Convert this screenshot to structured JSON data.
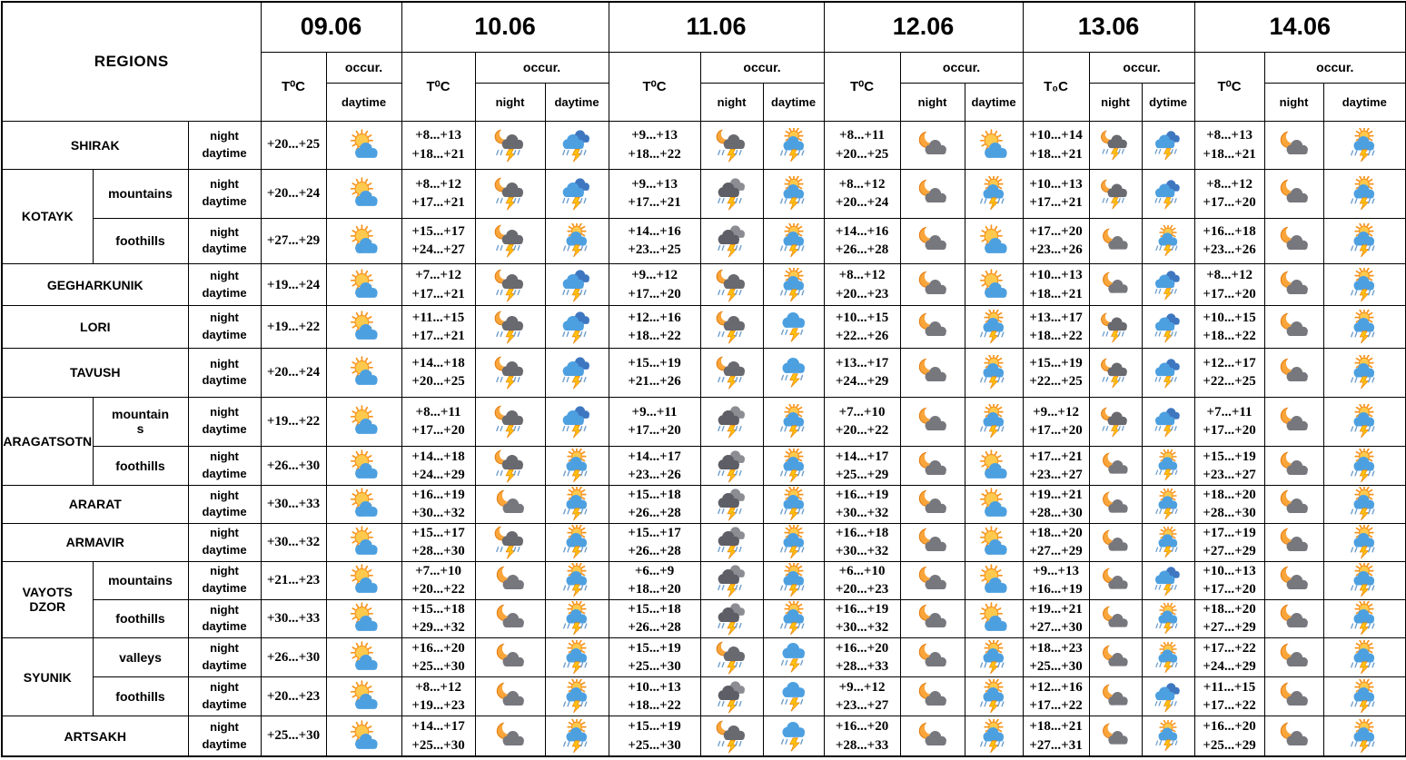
{
  "header": {
    "regions_label": "REGIONS",
    "occur_label": "occur.",
    "dates": [
      {
        "label": "09.06",
        "temp_label": "T⁰C",
        "cols": [
          "daytime"
        ]
      },
      {
        "label": "10.06",
        "temp_label": "T⁰C",
        "cols": [
          "night",
          "daytime"
        ]
      },
      {
        "label": "11.06",
        "temp_label": "T⁰C",
        "cols": [
          "night",
          "daytime"
        ]
      },
      {
        "label": "12.06",
        "temp_label": "T⁰C",
        "cols": [
          "night",
          "daytime"
        ]
      },
      {
        "label": "13.06",
        "temp_label": "T₀C",
        "cols": [
          "night",
          "dytime"
        ]
      },
      {
        "label": "14.06",
        "temp_label": "T⁰C",
        "cols": [
          "night",
          "daytime"
        ]
      }
    ]
  },
  "labels": {
    "night": "night",
    "daytime": "daytime"
  },
  "icons_legend": {
    "partly-day": "sun behind blue cloud",
    "storm-day-sun": "sun with blue cloud, lightning and rain",
    "storm-blue-heavy": "two blue clouds with lightning and heavy rain",
    "storm-blue": "blue cloud with lightning and rain",
    "storm-night-moon": "moon with dark cloud, lightning and rain",
    "night-cloud": "moon with grey cloud",
    "storm-dark": "dark clouds with lightning and rain"
  },
  "colors": {
    "sun": "#F7941D",
    "moon": "#FAA53A",
    "day_cloud": "#4DA0E0",
    "night_cloud": "#77777E",
    "bolt": "#FFC20E",
    "rain": "#6D9ECC"
  },
  "rows": [
    {
      "region": "SHIRAK",
      "region_rowspan": 1,
      "subregion": null,
      "days": [
        {
          "temps": [
            "+20...+25"
          ],
          "icons": [
            "partly-day"
          ]
        },
        {
          "temps": [
            "+8...+13",
            "+18...+21"
          ],
          "icons": [
            "storm-night-moon",
            "storm-blue-heavy"
          ]
        },
        {
          "temps": [
            "+9...+13",
            "+18...+22"
          ],
          "icons": [
            "storm-night-moon",
            "storm-day-sun"
          ]
        },
        {
          "temps": [
            "+8...+11",
            "+20...+25"
          ],
          "icons": [
            "night-cloud",
            "partly-day"
          ]
        },
        {
          "temps": [
            "+10...+14",
            "+18...+21"
          ],
          "icons": [
            "storm-night-moon",
            "storm-blue-heavy"
          ]
        },
        {
          "temps": [
            "+8...+13",
            "+18...+21"
          ],
          "icons": [
            "night-cloud",
            "storm-day-sun"
          ]
        }
      ]
    },
    {
      "region": "KOTAYK",
      "region_rowspan": 2,
      "subregion": "mountains",
      "days": [
        {
          "temps": [
            "+20...+24"
          ],
          "icons": [
            "partly-day"
          ]
        },
        {
          "temps": [
            "+8...+12",
            "+17...+21"
          ],
          "icons": [
            "storm-night-moon",
            "storm-blue-heavy"
          ]
        },
        {
          "temps": [
            "+9...+13",
            "+17...+21"
          ],
          "icons": [
            "storm-dark",
            "storm-day-sun"
          ]
        },
        {
          "temps": [
            "+8...+12",
            "+20...+24"
          ],
          "icons": [
            "night-cloud",
            "storm-day-sun"
          ]
        },
        {
          "temps": [
            "+10...+13",
            "+17...+21"
          ],
          "icons": [
            "storm-night-moon",
            "storm-blue-heavy"
          ]
        },
        {
          "temps": [
            "+8...+12",
            "+17...+20"
          ],
          "icons": [
            "night-cloud",
            "storm-day-sun"
          ]
        }
      ]
    },
    {
      "region": null,
      "region_rowspan": 0,
      "subregion": "foothills",
      "days": [
        {
          "temps": [
            "+27...+29"
          ],
          "icons": [
            "partly-day"
          ]
        },
        {
          "temps": [
            "+15...+17",
            "+24...+27"
          ],
          "icons": [
            "storm-night-moon",
            "storm-day-sun"
          ]
        },
        {
          "temps": [
            "+14...+16",
            "+23...+25"
          ],
          "icons": [
            "storm-dark",
            "storm-day-sun"
          ]
        },
        {
          "temps": [
            "+14...+16",
            "+26...+28"
          ],
          "icons": [
            "night-cloud",
            "partly-day"
          ]
        },
        {
          "temps": [
            "+17...+20",
            "+23...+26"
          ],
          "icons": [
            "night-cloud",
            "storm-day-sun"
          ]
        },
        {
          "temps": [
            "+16...+18",
            "+23...+26"
          ],
          "icons": [
            "night-cloud",
            "storm-day-sun"
          ]
        }
      ]
    },
    {
      "region": "GEGHARKUNIK",
      "region_rowspan": 1,
      "subregion": null,
      "days": [
        {
          "temps": [
            "+19...+24"
          ],
          "icons": [
            "partly-day"
          ]
        },
        {
          "temps": [
            "+7...+12",
            "+17...+21"
          ],
          "icons": [
            "storm-night-moon",
            "storm-blue-heavy"
          ]
        },
        {
          "temps": [
            "+9...+12",
            "+17...+20"
          ],
          "icons": [
            "storm-night-moon",
            "storm-day-sun"
          ]
        },
        {
          "temps": [
            "+8...+12",
            "+20...+23"
          ],
          "icons": [
            "night-cloud",
            "partly-day"
          ]
        },
        {
          "temps": [
            "+10...+13",
            "+18...+21"
          ],
          "icons": [
            "night-cloud",
            "storm-blue-heavy"
          ]
        },
        {
          "temps": [
            "+8...+12",
            "+17...+20"
          ],
          "icons": [
            "night-cloud",
            "storm-day-sun"
          ]
        }
      ]
    },
    {
      "region": "LORI",
      "region_rowspan": 1,
      "subregion": null,
      "days": [
        {
          "temps": [
            "+19...+22"
          ],
          "icons": [
            "partly-day"
          ]
        },
        {
          "temps": [
            "+11...+15",
            "+17...+21"
          ],
          "icons": [
            "storm-night-moon",
            "storm-blue-heavy"
          ]
        },
        {
          "temps": [
            "+12...+16",
            "+18...+22"
          ],
          "icons": [
            "storm-night-moon",
            "storm-blue"
          ]
        },
        {
          "temps": [
            "+10...+15",
            "+22...+26"
          ],
          "icons": [
            "night-cloud",
            "storm-day-sun"
          ]
        },
        {
          "temps": [
            "+13...+17",
            "+18...+22"
          ],
          "icons": [
            "storm-night-moon",
            "storm-blue-heavy"
          ]
        },
        {
          "temps": [
            "+10...+15",
            "+18...+22"
          ],
          "icons": [
            "night-cloud",
            "storm-day-sun"
          ]
        }
      ]
    },
    {
      "region": "TAVUSH",
      "region_rowspan": 1,
      "subregion": null,
      "days": [
        {
          "temps": [
            "+20...+24"
          ],
          "icons": [
            "partly-day"
          ]
        },
        {
          "temps": [
            "+14...+18",
            "+20...+25"
          ],
          "icons": [
            "storm-night-moon",
            "storm-blue-heavy"
          ]
        },
        {
          "temps": [
            "+15...+19",
            "+21...+26"
          ],
          "icons": [
            "storm-night-moon",
            "storm-blue"
          ]
        },
        {
          "temps": [
            "+13...+17",
            "+24...+29"
          ],
          "icons": [
            "night-cloud",
            "storm-day-sun"
          ]
        },
        {
          "temps": [
            "+15...+19",
            "+22...+25"
          ],
          "icons": [
            "storm-night-moon",
            "storm-blue-heavy"
          ]
        },
        {
          "temps": [
            "+12...+17",
            "+22...+25"
          ],
          "icons": [
            "night-cloud",
            "storm-day-sun"
          ]
        }
      ]
    },
    {
      "region": "ARAGATSOTN",
      "region_rowspan": 2,
      "subregion": "mountains",
      "days": [
        {
          "temps": [
            "+19...+22"
          ],
          "icons": [
            "partly-day"
          ]
        },
        {
          "temps": [
            "+8...+11",
            "+17...+20"
          ],
          "icons": [
            "storm-night-moon",
            "storm-blue-heavy"
          ]
        },
        {
          "temps": [
            "+9...+11",
            "+17...+20"
          ],
          "icons": [
            "storm-dark",
            "storm-day-sun"
          ]
        },
        {
          "temps": [
            "+7...+10",
            "+20...+22"
          ],
          "icons": [
            "night-cloud",
            "storm-day-sun"
          ]
        },
        {
          "temps": [
            "+9...+12",
            "+17...+20"
          ],
          "icons": [
            "storm-night-moon",
            "storm-blue-heavy"
          ]
        },
        {
          "temps": [
            "+7...+11",
            "+17...+20"
          ],
          "icons": [
            "night-cloud",
            "storm-day-sun"
          ]
        }
      ]
    },
    {
      "region": null,
      "region_rowspan": 0,
      "subregion": "foothills",
      "days": [
        {
          "temps": [
            "+26...+30"
          ],
          "icons": [
            "partly-day"
          ]
        },
        {
          "temps": [
            "+14...+18",
            "+24...+29"
          ],
          "icons": [
            "storm-night-moon",
            "storm-day-sun"
          ]
        },
        {
          "temps": [
            "+14...+17",
            "+23...+26"
          ],
          "icons": [
            "storm-dark",
            "storm-day-sun"
          ]
        },
        {
          "temps": [
            "+14...+17",
            "+25...+29"
          ],
          "icons": [
            "night-cloud",
            "partly-day"
          ]
        },
        {
          "temps": [
            "+17...+21",
            "+23...+27"
          ],
          "icons": [
            "night-cloud",
            "storm-day-sun"
          ]
        },
        {
          "temps": [
            "+15...+19",
            "+23...+27"
          ],
          "icons": [
            "night-cloud",
            "storm-day-sun"
          ]
        }
      ]
    },
    {
      "region": "ARARAT",
      "region_rowspan": 1,
      "subregion": null,
      "days": [
        {
          "temps": [
            "+30...+33"
          ],
          "icons": [
            "partly-day"
          ]
        },
        {
          "temps": [
            "+16...+19",
            "+30...+32"
          ],
          "icons": [
            "night-cloud",
            "storm-day-sun"
          ]
        },
        {
          "temps": [
            "+15...+18",
            "+26...+28"
          ],
          "icons": [
            "storm-dark",
            "storm-day-sun"
          ]
        },
        {
          "temps": [
            "+16...+19",
            "+30...+32"
          ],
          "icons": [
            "night-cloud",
            "partly-day"
          ]
        },
        {
          "temps": [
            "+19...+21",
            "+28...+30"
          ],
          "icons": [
            "night-cloud",
            "storm-day-sun"
          ]
        },
        {
          "temps": [
            "+18...+20",
            "+28...+30"
          ],
          "icons": [
            "night-cloud",
            "storm-day-sun"
          ]
        }
      ]
    },
    {
      "region": "ARMAVIR",
      "region_rowspan": 1,
      "subregion": null,
      "days": [
        {
          "temps": [
            "+30...+32"
          ],
          "icons": [
            "partly-day"
          ]
        },
        {
          "temps": [
            "+15...+17",
            "+28...+30"
          ],
          "icons": [
            "storm-night-moon",
            "storm-day-sun"
          ]
        },
        {
          "temps": [
            "+15...+17",
            "+26...+28"
          ],
          "icons": [
            "storm-dark",
            "storm-day-sun"
          ]
        },
        {
          "temps": [
            "+16...+18",
            "+30...+32"
          ],
          "icons": [
            "night-cloud",
            "partly-day"
          ]
        },
        {
          "temps": [
            "+18...+20",
            "+27...+29"
          ],
          "icons": [
            "night-cloud",
            "storm-day-sun"
          ]
        },
        {
          "temps": [
            "+17...+19",
            "+27...+29"
          ],
          "icons": [
            "night-cloud",
            "storm-day-sun"
          ]
        }
      ]
    },
    {
      "region": "VAYOTS DZOR",
      "region_rowspan": 2,
      "subregion": "mountains",
      "days": [
        {
          "temps": [
            "+21...+23"
          ],
          "icons": [
            "partly-day"
          ]
        },
        {
          "temps": [
            "+7...+10",
            "+20...+22"
          ],
          "icons": [
            "night-cloud",
            "storm-day-sun"
          ]
        },
        {
          "temps": [
            "+6...+9",
            "+18...+20"
          ],
          "icons": [
            "storm-dark",
            "storm-day-sun"
          ]
        },
        {
          "temps": [
            "+6...+10",
            "+20...+23"
          ],
          "icons": [
            "night-cloud",
            "partly-day"
          ]
        },
        {
          "temps": [
            "+9...+13",
            "+16...+19"
          ],
          "icons": [
            "night-cloud",
            "storm-blue-heavy"
          ]
        },
        {
          "temps": [
            "+10...+13",
            "+17...+20"
          ],
          "icons": [
            "night-cloud",
            "storm-day-sun"
          ]
        }
      ]
    },
    {
      "region": null,
      "region_rowspan": 0,
      "subregion": "foothills",
      "days": [
        {
          "temps": [
            "+30...+33"
          ],
          "icons": [
            "partly-day"
          ]
        },
        {
          "temps": [
            "+15...+18",
            "+29...+32"
          ],
          "icons": [
            "night-cloud",
            "storm-day-sun"
          ]
        },
        {
          "temps": [
            "+15...+18",
            "+26...+28"
          ],
          "icons": [
            "storm-dark",
            "storm-day-sun"
          ]
        },
        {
          "temps": [
            "+16...+19",
            "+30...+32"
          ],
          "icons": [
            "night-cloud",
            "partly-day"
          ]
        },
        {
          "temps": [
            "+19...+21",
            "+27...+30"
          ],
          "icons": [
            "night-cloud",
            "storm-day-sun"
          ]
        },
        {
          "temps": [
            "+18...+20",
            "+27...+29"
          ],
          "icons": [
            "night-cloud",
            "storm-day-sun"
          ]
        }
      ]
    },
    {
      "region": "SYUNIK",
      "region_rowspan": 2,
      "subregion": "valleys",
      "days": [
        {
          "temps": [
            "+26...+30"
          ],
          "icons": [
            "partly-day"
          ]
        },
        {
          "temps": [
            "+16...+20",
            "+25...+30"
          ],
          "icons": [
            "night-cloud",
            "storm-day-sun"
          ]
        },
        {
          "temps": [
            "+15...+19",
            "+25...+30"
          ],
          "icons": [
            "storm-night-moon",
            "storm-blue"
          ]
        },
        {
          "temps": [
            "+16...+20",
            "+28...+33"
          ],
          "icons": [
            "night-cloud",
            "storm-day-sun"
          ]
        },
        {
          "temps": [
            "+18...+23",
            "+25...+30"
          ],
          "icons": [
            "night-cloud",
            "storm-day-sun"
          ]
        },
        {
          "temps": [
            "+17...+22",
            "+24...+29"
          ],
          "icons": [
            "night-cloud",
            "storm-day-sun"
          ]
        }
      ]
    },
    {
      "region": null,
      "region_rowspan": 0,
      "subregion": "foothills",
      "days": [
        {
          "temps": [
            "+20...+23"
          ],
          "icons": [
            "partly-day"
          ]
        },
        {
          "temps": [
            "+8...+12",
            "+19...+23"
          ],
          "icons": [
            "night-cloud",
            "storm-day-sun"
          ]
        },
        {
          "temps": [
            "+10...+13",
            "+18...+22"
          ],
          "icons": [
            "storm-dark",
            "storm-blue"
          ]
        },
        {
          "temps": [
            "+9...+12",
            "+23...+27"
          ],
          "icons": [
            "night-cloud",
            "storm-day-sun"
          ]
        },
        {
          "temps": [
            "+12...+16",
            "+17...+22"
          ],
          "icons": [
            "night-cloud",
            "storm-blue-heavy"
          ]
        },
        {
          "temps": [
            "+11...+15",
            "+17...+22"
          ],
          "icons": [
            "night-cloud",
            "storm-day-sun"
          ]
        }
      ]
    },
    {
      "region": "ARTSAKH",
      "region_rowspan": 1,
      "subregion": null,
      "days": [
        {
          "temps": [
            "+25...+30"
          ],
          "icons": [
            "partly-day"
          ]
        },
        {
          "temps": [
            "+14...+17",
            "+25...+30"
          ],
          "icons": [
            "night-cloud",
            "storm-day-sun"
          ]
        },
        {
          "temps": [
            "+15...+19",
            "+25...+30"
          ],
          "icons": [
            "storm-night-moon",
            "storm-blue"
          ]
        },
        {
          "temps": [
            "+16...+20",
            "+28...+33"
          ],
          "icons": [
            "night-cloud",
            "storm-day-sun"
          ]
        },
        {
          "temps": [
            "+18...+21",
            "+27...+31"
          ],
          "icons": [
            "night-cloud",
            "storm-day-sun"
          ]
        },
        {
          "temps": [
            "+16...+20",
            "+25...+29"
          ],
          "icons": [
            "night-cloud",
            "storm-day-sun"
          ]
        }
      ]
    }
  ]
}
